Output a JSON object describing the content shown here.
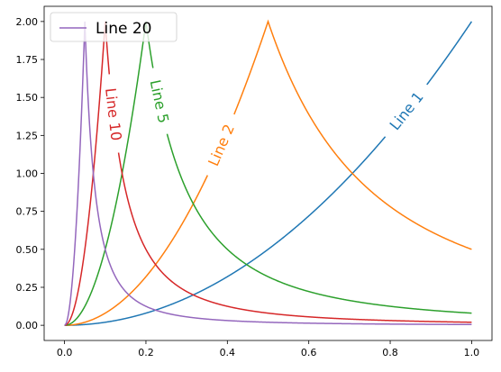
{
  "chart_data": {
    "type": "line",
    "title": "",
    "xlabel": "",
    "ylabel": "",
    "xlim": [
      -0.05,
      1.05
    ],
    "ylim": [
      -0.1,
      2.1
    ],
    "x_ticks": [
      0.0,
      0.2,
      0.4,
      0.6,
      0.8,
      1.0
    ],
    "x_tick_labels": [
      "0.0",
      "0.2",
      "0.4",
      "0.6",
      "0.8",
      "1.0"
    ],
    "y_ticks": [
      0.0,
      0.25,
      0.5,
      0.75,
      1.0,
      1.25,
      1.5,
      1.75,
      2.0
    ],
    "y_tick_labels": [
      "0.00",
      "0.25",
      "0.50",
      "0.75",
      "1.00",
      "1.25",
      "1.50",
      "1.75",
      "2.00"
    ],
    "grid": false,
    "legend": {
      "placement": "upper-left",
      "entries": [
        "Line 20"
      ]
    },
    "series": [
      {
        "name": "Line 1",
        "color": "#1f77b4",
        "peak_x": 1.0,
        "inline_label": "Line 1",
        "label_x": 0.84
      },
      {
        "name": "Line 2",
        "color": "#ff7f0e",
        "peak_x": 0.5,
        "inline_label": "Line 2",
        "label_x": 0.385
      },
      {
        "name": "Line 5",
        "color": "#2ca02c",
        "peak_x": 0.2,
        "inline_label": "Line 5",
        "label_x": 0.233
      },
      {
        "name": "Line 10",
        "color": "#d62728",
        "peak_x": 0.1,
        "inline_label": "Line 10",
        "label_x": 0.12
      },
      {
        "name": "Line 20",
        "color": "#9467bd",
        "peak_x": 0.05,
        "inline_label": "",
        "label_x": null
      }
    ],
    "function": "y = 2 * (x/peak_x)^2 for x <= peak_x, y = 2 * (peak_x/x)^2 for x > peak_x"
  }
}
